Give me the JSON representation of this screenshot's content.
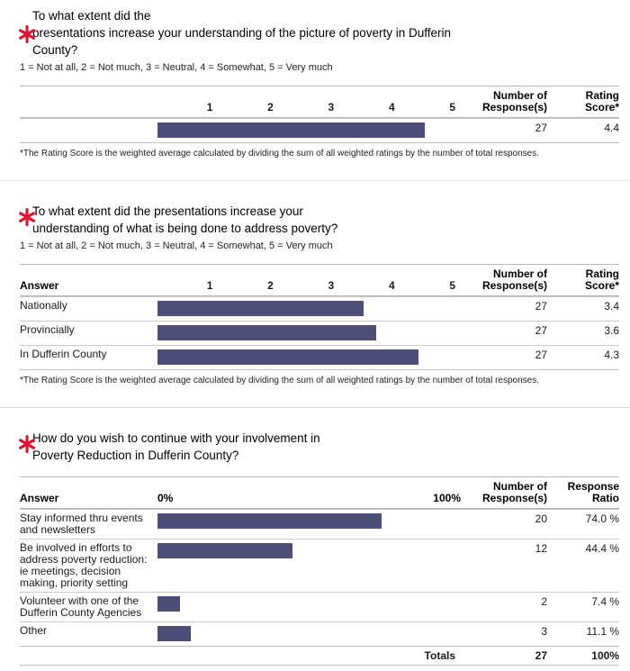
{
  "colors": {
    "bar": "#4e4f79",
    "asterisk": "#e8112d"
  },
  "scale_note": "1 = Not at all, 2 = Not much, 3 = Neutral, 4 = Somewhat, 5 = Very much",
  "footnote": "*The Rating Score is the weighted average calculated by dividing the sum of all weighted ratings by the number of total responses.",
  "scale_ticks": [
    "1",
    "2",
    "3",
    "4",
    "5"
  ],
  "headers": {
    "answer": "Answer",
    "responses": "Number of Response(s)",
    "rating": "Rating Score*",
    "ratio": "Response Ratio",
    "pct0": "0%",
    "pct100": "100%"
  },
  "q1": {
    "title_lines": [
      "To what extent did the",
      "presentations increase your understanding of the picture of poverty in Dufferin",
      "County?"
    ],
    "row": {
      "responses": "27",
      "score": "4.4"
    }
  },
  "q2": {
    "title_lines": [
      "To what extent did the presentations increase your",
      "understanding of what is being done to address poverty?"
    ],
    "rows": [
      {
        "label": "Nationally",
        "responses": "27",
        "score": "3.4"
      },
      {
        "label": "Provincially",
        "responses": "27",
        "score": "3.6"
      },
      {
        "label": "In Dufferin County",
        "responses": "27",
        "score": "4.3"
      }
    ]
  },
  "q3": {
    "title_lines": [
      "How do you wish to continue with your involvement in",
      "Poverty Reduction in Dufferin County?"
    ],
    "rows": [
      {
        "label": "Stay informed thru events and newsletters",
        "responses": "20",
        "ratio": "74.0 %"
      },
      {
        "label": "Be involved in efforts to address poverty reduction: ie meetings, decision making, priority setting",
        "responses": "12",
        "ratio": "44.4 %"
      },
      {
        "label": "Volunteer with one of the Dufferin County Agencies",
        "responses": "2",
        "ratio": "7.4 %"
      },
      {
        "label": "Other",
        "responses": "3",
        "ratio": "11.1 %"
      }
    ],
    "totals": {
      "label": "Totals",
      "responses": "27",
      "ratio": "100%"
    }
  },
  "chart_data": [
    {
      "type": "bar",
      "orientation": "horizontal",
      "title": "To what extent did the presentations increase your understanding of the picture of poverty in Dufferin County?",
      "scale": "1 = Not at all, 2 = Not much, 3 = Neutral, 4 = Somewhat, 5 = Very much",
      "categories": [
        ""
      ],
      "values": [
        4.4
      ],
      "responses": [
        27
      ],
      "xlim": [
        0,
        5
      ],
      "xticks": [
        1,
        2,
        3,
        4,
        5
      ]
    },
    {
      "type": "bar",
      "orientation": "horizontal",
      "title": "To what extent did the presentations increase your understanding of what is being done to address poverty?",
      "scale": "1 = Not at all, 2 = Not much, 3 = Neutral, 4 = Somewhat, 5 = Very much",
      "categories": [
        "Nationally",
        "Provincially",
        "In Dufferin County"
      ],
      "values": [
        3.4,
        3.6,
        4.3
      ],
      "responses": [
        27,
        27,
        27
      ],
      "xlim": [
        0,
        5
      ],
      "xticks": [
        1,
        2,
        3,
        4,
        5
      ]
    },
    {
      "type": "bar",
      "orientation": "horizontal",
      "title": "How do you wish to continue with your involvement in Poverty Reduction in Dufferin County?",
      "categories": [
        "Stay informed thru events and newsletters",
        "Be involved in efforts to address poverty reduction: ie meetings, decision making, priority setting",
        "Volunteer with one of the Dufferin County Agencies",
        "Other"
      ],
      "values": [
        74.0,
        44.4,
        7.4,
        11.1
      ],
      "responses": [
        20,
        12,
        2,
        3
      ],
      "total_responses": 27,
      "xlim": [
        0,
        100
      ]
    }
  ]
}
